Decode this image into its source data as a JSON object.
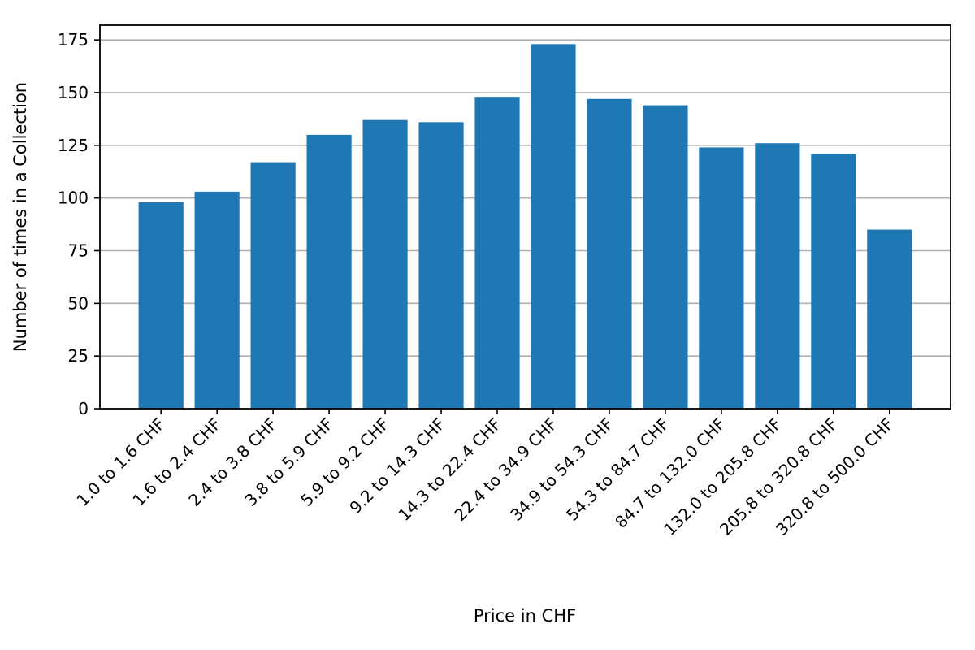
{
  "chart_data": {
    "type": "bar",
    "categories": [
      "1.0 to 1.6 CHF",
      "1.6 to 2.4 CHF",
      "2.4 to 3.8 CHF",
      "3.8 to 5.9 CHF",
      "5.9 to 9.2 CHF",
      "9.2 to 14.3 CHF",
      "14.3 to 22.4 CHF",
      "22.4 to 34.9 CHF",
      "34.9 to 54.3 CHF",
      "54.3 to 84.7 CHF",
      "84.7 to 132.0 CHF",
      "132.0 to 205.8 CHF",
      "205.8 to 320.8 CHF",
      "320.8 to 500.0 CHF"
    ],
    "values": [
      98,
      103,
      117,
      130,
      137,
      136,
      148,
      173,
      147,
      144,
      124,
      126,
      121,
      85
    ],
    "xlabel": "Price in CHF",
    "ylabel": "Number of times in a Collection",
    "ylim": [
      0,
      182
    ],
    "yticks": [
      0,
      25,
      50,
      75,
      100,
      125,
      150,
      175
    ],
    "grid": "y-major",
    "bar_color": "#1f77b4"
  }
}
